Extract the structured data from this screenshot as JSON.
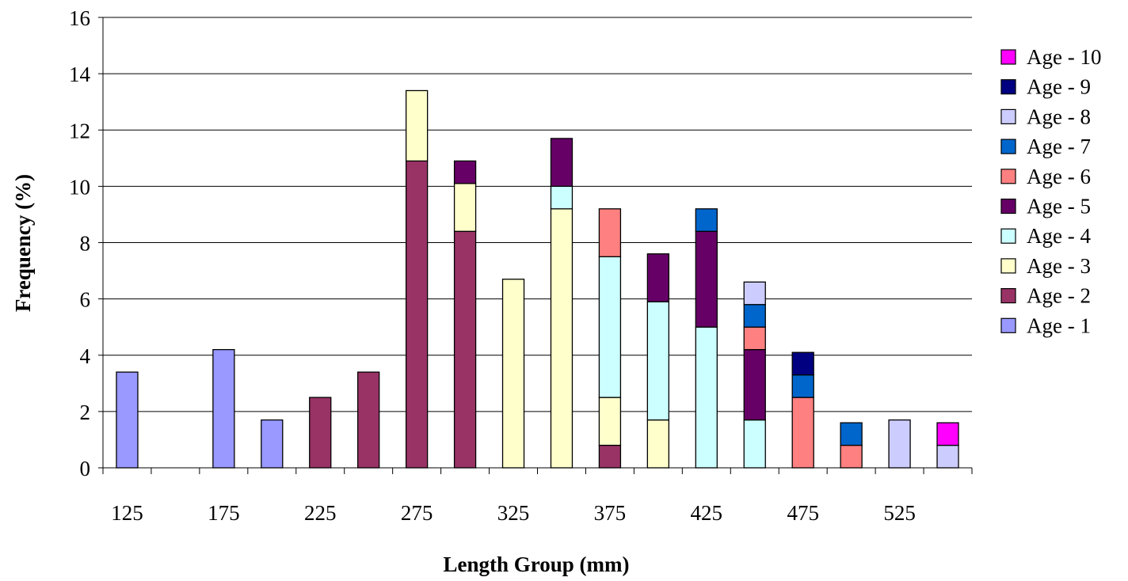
{
  "chart_data": {
    "type": "bar",
    "stacked": true,
    "title": "",
    "xlabel": "Length Group (mm)",
    "ylabel": "Frequency (%)",
    "ylim": [
      0,
      16
    ],
    "yticks": [
      "0",
      "2",
      "4",
      "6",
      "8",
      "10",
      "12",
      "14",
      "16"
    ],
    "categories": [
      "125",
      "150",
      "175",
      "200",
      "225",
      "250",
      "275",
      "300",
      "325",
      "350",
      "375",
      "400",
      "425",
      "450",
      "475",
      "500",
      "525",
      "550"
    ],
    "category_tick_labels": [
      "125",
      "",
      "175",
      "",
      "225",
      "",
      "275",
      "",
      "325",
      "",
      "375",
      "",
      "425",
      "",
      "475",
      "",
      "525",
      ""
    ],
    "grid": true,
    "legend_position": "right",
    "series": [
      {
        "name": "Age - 1",
        "color": "#9999FF",
        "values": [
          3.4,
          0,
          4.2,
          1.7,
          0,
          0,
          0,
          0,
          0,
          0,
          0,
          0,
          0,
          0,
          0,
          0,
          0,
          0
        ]
      },
      {
        "name": "Age - 2",
        "color": "#993366",
        "values": [
          0,
          0,
          0,
          0,
          2.5,
          3.4,
          10.9,
          8.4,
          0,
          0,
          0.8,
          0,
          0,
          0,
          0,
          0,
          0,
          0
        ]
      },
      {
        "name": "Age - 3",
        "color": "#FFFFCC",
        "values": [
          0,
          0,
          0,
          0,
          0,
          0,
          2.5,
          1.7,
          6.7,
          9.2,
          1.7,
          1.7,
          0,
          0,
          0,
          0,
          0,
          0
        ]
      },
      {
        "name": "Age - 4",
        "color": "#CCFFFF",
        "values": [
          0,
          0,
          0,
          0,
          0,
          0,
          0,
          0,
          0,
          0.8,
          5.0,
          4.2,
          5.0,
          1.7,
          0,
          0,
          0,
          0
        ]
      },
      {
        "name": "Age - 5",
        "color": "#660066",
        "values": [
          0,
          0,
          0,
          0,
          0,
          0,
          0,
          0.8,
          0,
          1.7,
          0,
          1.7,
          3.4,
          2.5,
          0,
          0,
          0,
          0
        ]
      },
      {
        "name": "Age - 6",
        "color": "#FF8080",
        "values": [
          0,
          0,
          0,
          0,
          0,
          0,
          0,
          0,
          0,
          0,
          1.7,
          0,
          0,
          0.8,
          2.5,
          0.8,
          0,
          0
        ]
      },
      {
        "name": "Age - 7",
        "color": "#0066CC",
        "values": [
          0,
          0,
          0,
          0,
          0,
          0,
          0,
          0,
          0,
          0,
          0,
          0,
          0.8,
          0.8,
          0.8,
          0.8,
          0,
          0
        ]
      },
      {
        "name": "Age - 8",
        "color": "#CCCCFF",
        "values": [
          0,
          0,
          0,
          0,
          0,
          0,
          0,
          0,
          0,
          0,
          0,
          0,
          0,
          0.8,
          0,
          0,
          1.7,
          0.8
        ]
      },
      {
        "name": "Age - 9",
        "color": "#000080",
        "values": [
          0,
          0,
          0,
          0,
          0,
          0,
          0,
          0,
          0,
          0,
          0,
          0,
          0,
          0,
          0.8,
          0,
          0,
          0
        ]
      },
      {
        "name": "Age - 10",
        "color": "#FF00FF",
        "values": [
          0,
          0,
          0,
          0,
          0,
          0,
          0,
          0,
          0,
          0,
          0,
          0,
          0,
          0,
          0,
          0,
          0,
          0.8
        ]
      }
    ]
  }
}
